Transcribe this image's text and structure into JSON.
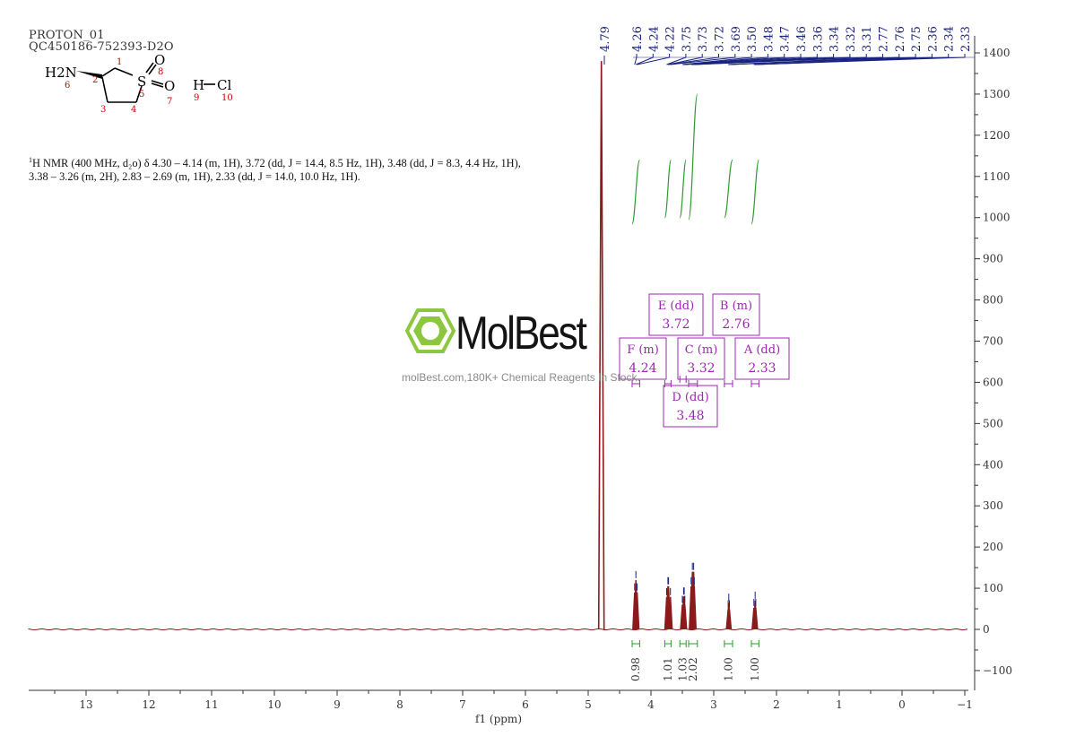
{
  "header": {
    "line1": "PROTON_01",
    "line2": "QC450186-752393-D2O"
  },
  "structure": {
    "labels": [
      "H2N",
      "1",
      "2",
      "3",
      "4",
      "5",
      "6",
      "7",
      "8",
      "9",
      "10",
      "S",
      "O",
      "O",
      "H",
      "Cl"
    ]
  },
  "description": {
    "nucleus_sup": "1",
    "text": "H NMR (400 MHz, d₂o) δ 4.30 – 4.14 (m, 1H), 3.72 (dd, J = 14.4, 8.5 Hz, 1H), 3.48 (dd, J = 8.3, 4.4 Hz, 1H), 3.38 – 3.26 (m, 2H), 2.83 – 2.69 (m, 1H), 2.33 (dd, J = 14.0, 10.0 Hz, 1H)."
  },
  "watermark": {
    "brand": "MolBest",
    "url": "molBest.com,180K+ Chemical Reagents In Stock."
  },
  "colors": {
    "spectrum": "#8b1a1a",
    "peak_labels": "#1a237e",
    "integral": "#2e9b2e",
    "multiplet_box": "#9c27b0",
    "logo": "#8dc63f"
  },
  "chart_data": {
    "type": "line",
    "xlabel": "f1 (ppm)",
    "xlim": [
      14,
      -1
    ],
    "x_reversed": true,
    "x_ticks": [
      13,
      12,
      11,
      10,
      9,
      8,
      7,
      6,
      5,
      4,
      3,
      2,
      1,
      0,
      -1
    ],
    "x_tick_labels": [
      "13",
      "12",
      "11",
      "10",
      "9",
      "8",
      "7",
      "6",
      "5",
      "4",
      "3",
      "2",
      "1",
      "0",
      "−1"
    ],
    "ylim": [
      -140,
      1420
    ],
    "y_ticks": [
      -100,
      0,
      100,
      200,
      300,
      400,
      500,
      600,
      700,
      800,
      900,
      1000,
      1100,
      1200,
      1300,
      1400
    ],
    "y_tick_labels": [
      "−100",
      "0",
      "100",
      "200",
      "300",
      "400",
      "500",
      "600",
      "700",
      "800",
      "900",
      "1000",
      "1100",
      "1200",
      "1300",
      "1400"
    ],
    "solvent_peak": {
      "ppm": 4.79,
      "height": 1380
    },
    "peak_labels": [
      "4.79",
      "4.26",
      "4.24",
      "4.22",
      "3.75",
      "3.73",
      "3.72",
      "3.69",
      "3.50",
      "3.48",
      "3.47",
      "3.46",
      "3.36",
      "3.34",
      "3.32",
      "3.31",
      "2.77",
      "2.76",
      "2.75",
      "2.36",
      "2.34",
      "2.33"
    ],
    "multiplets": [
      {
        "ppm": 4.24,
        "height": 120,
        "lines": [
          4.26,
          4.24,
          4.22
        ]
      },
      {
        "ppm": 3.72,
        "height": 105,
        "lines": [
          3.75,
          3.73,
          3.72,
          3.69
        ]
      },
      {
        "ppm": 3.48,
        "height": 80,
        "lines": [
          3.5,
          3.48,
          3.47,
          3.46
        ]
      },
      {
        "ppm": 3.33,
        "height": 140,
        "lines": [
          3.36,
          3.34,
          3.32,
          3.31
        ]
      },
      {
        "ppm": 2.76,
        "height": 65,
        "lines": [
          2.77,
          2.76,
          2.75
        ]
      },
      {
        "ppm": 2.34,
        "height": 70,
        "lines": [
          2.36,
          2.34,
          2.33
        ]
      }
    ],
    "multiplet_boxes": [
      {
        "title": "F (m)",
        "value": "4.24"
      },
      {
        "title": "E (dd)",
        "value": "3.72"
      },
      {
        "title": "D (dd)",
        "value": "3.48"
      },
      {
        "title": "C (m)",
        "value": "3.32"
      },
      {
        "title": "B (m)",
        "value": "2.76"
      },
      {
        "title": "A (dd)",
        "value": "2.33"
      }
    ],
    "integrals": [
      {
        "label": "0.98",
        "from": 4.3,
        "to": 4.18,
        "start": 985,
        "end": 1140
      },
      {
        "label": "1.01",
        "from": 3.78,
        "to": 3.68,
        "start": 1000,
        "end": 1140
      },
      {
        "label": "1.03",
        "from": 3.54,
        "to": 3.44,
        "start": 1000,
        "end": 1140
      },
      {
        "label": "2.02",
        "from": 3.4,
        "to": 3.26,
        "start": 995,
        "end": 1300
      },
      {
        "label": "1.00",
        "from": 2.83,
        "to": 2.7,
        "start": 1000,
        "end": 1140
      },
      {
        "label": "1.00",
        "from": 2.4,
        "to": 2.28,
        "start": 985,
        "end": 1140
      }
    ]
  }
}
